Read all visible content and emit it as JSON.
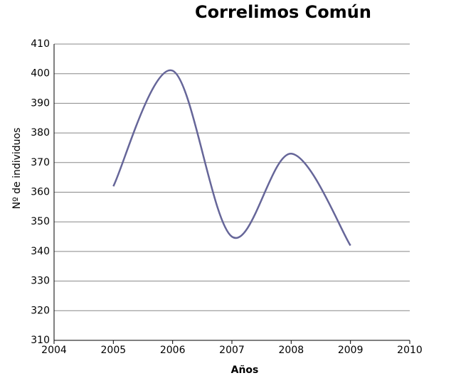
{
  "chart_data": {
    "type": "line",
    "title": "Correlimos Común",
    "x_label": "Años",
    "y_label": "Nº de individuos",
    "x": [
      2005,
      2006,
      2007,
      2008,
      2009
    ],
    "series": [
      {
        "name": "Correlimos Común",
        "color": "#666699",
        "values": [
          362,
          401,
          345,
          373,
          342
        ]
      }
    ],
    "xlim": [
      2004,
      2010
    ],
    "xticks": [
      2004,
      2005,
      2006,
      2007,
      2008,
      2009,
      2010
    ],
    "ylim": [
      310,
      410
    ],
    "yticks": [
      310,
      320,
      330,
      340,
      350,
      360,
      370,
      380,
      390,
      400,
      410
    ],
    "grid": true,
    "smooth": true
  }
}
